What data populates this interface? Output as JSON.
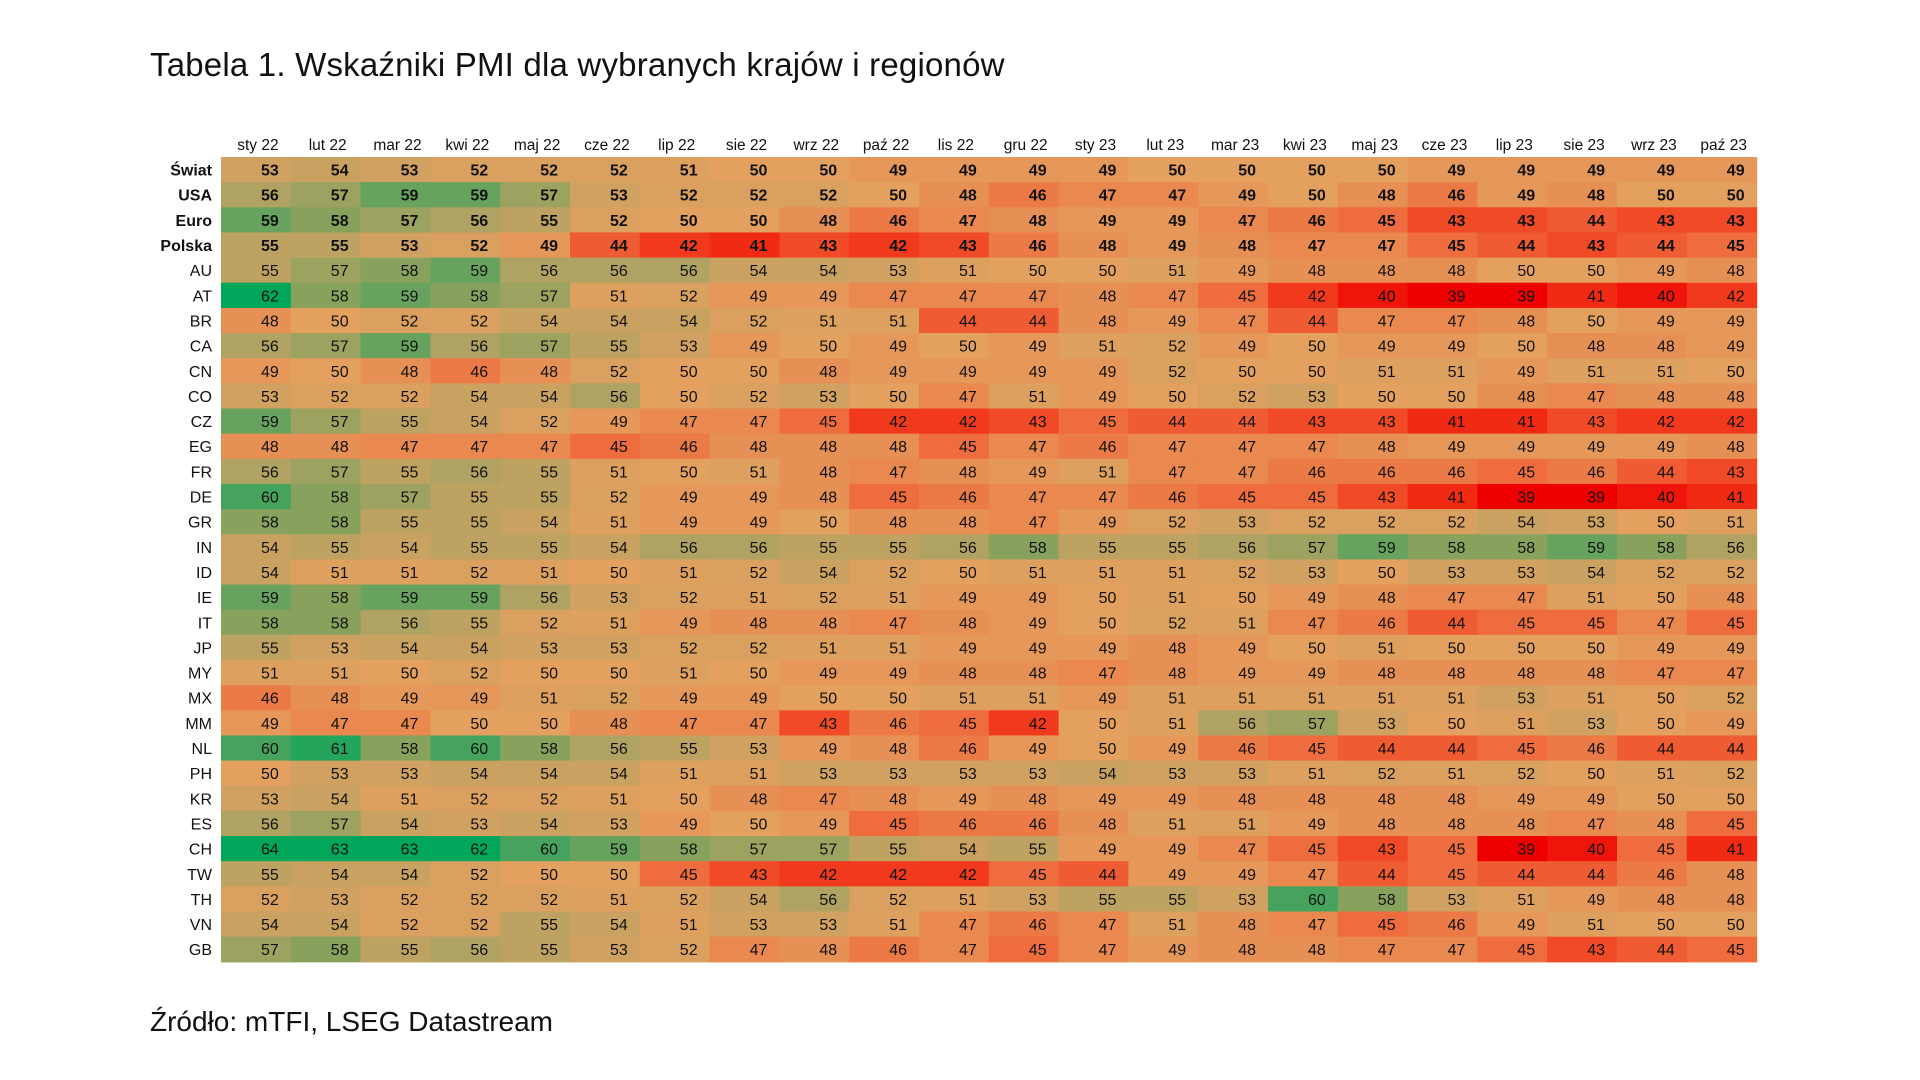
{
  "title": "Tabela 1. Wskaźniki PMI dla wybranych krajów i regionów",
  "source": "Źródło: mTFI, LSEG Datastream",
  "chart_data": {
    "type": "heatmap",
    "title": "Tabela 1. Wskaźniki PMI dla wybranych krajów i regionów",
    "columns": [
      "sty 22",
      "lut 22",
      "mar 22",
      "kwi 22",
      "maj 22",
      "cze 22",
      "lip 22",
      "sie 22",
      "wrz 22",
      "paź 22",
      "lis 22",
      "gru 22",
      "sty 23",
      "lut 23",
      "mar 23",
      "kwi 23",
      "maj 23",
      "cze 23",
      "lip 23",
      "sie 23",
      "wrz 23",
      "paź 23"
    ],
    "color_scale": {
      "low": "#ee0000",
      "mid": "#e3a05e",
      "high": "#00a65a",
      "low_value": 39,
      "mid_value": 50,
      "high_value": 64
    },
    "bold_rows": [
      "Świat",
      "USA",
      "Euro",
      "Polska"
    ],
    "rows": [
      {
        "label": "Świat",
        "values": [
          53,
          54,
          53,
          52,
          52,
          52,
          51,
          50,
          50,
          49,
          49,
          49,
          49,
          50,
          50,
          50,
          50,
          49,
          49,
          49,
          49,
          49
        ]
      },
      {
        "label": "USA",
        "values": [
          56,
          57,
          59,
          59,
          57,
          53,
          52,
          52,
          52,
          50,
          48,
          46,
          47,
          47,
          49,
          50,
          48,
          46,
          49,
          48,
          50,
          50
        ]
      },
      {
        "label": "Euro",
        "values": [
          59,
          58,
          57,
          56,
          55,
          52,
          50,
          50,
          48,
          46,
          47,
          48,
          49,
          49,
          47,
          46,
          45,
          43,
          43,
          44,
          43,
          43
        ]
      },
      {
        "label": "Polska",
        "values": [
          55,
          55,
          53,
          52,
          49,
          44,
          42,
          41,
          43,
          42,
          43,
          46,
          48,
          49,
          48,
          47,
          47,
          45,
          44,
          43,
          44,
          45
        ]
      },
      {
        "label": "AU",
        "values": [
          55,
          57,
          58,
          59,
          56,
          56,
          56,
          54,
          54,
          53,
          51,
          50,
          50,
          51,
          49,
          48,
          48,
          48,
          50,
          50,
          49,
          48
        ]
      },
      {
        "label": "AT",
        "values": [
          62,
          58,
          59,
          58,
          57,
          51,
          52,
          49,
          49,
          47,
          47,
          47,
          48,
          47,
          45,
          42,
          40,
          39,
          39,
          41,
          40,
          42
        ]
      },
      {
        "label": "BR",
        "values": [
          48,
          50,
          52,
          52,
          54,
          54,
          54,
          52,
          51,
          51,
          44,
          44,
          48,
          49,
          47,
          44,
          47,
          47,
          48,
          50,
          49,
          49
        ]
      },
      {
        "label": "CA",
        "values": [
          56,
          57,
          59,
          56,
          57,
          55,
          53,
          49,
          50,
          49,
          50,
          49,
          51,
          52,
          49,
          50,
          49,
          49,
          50,
          48,
          48,
          49
        ]
      },
      {
        "label": "CN",
        "values": [
          49,
          50,
          48,
          46,
          48,
          52,
          50,
          50,
          48,
          49,
          49,
          49,
          49,
          52,
          50,
          50,
          51,
          51,
          49,
          51,
          51,
          50
        ]
      },
      {
        "label": "CO",
        "values": [
          53,
          52,
          52,
          54,
          54,
          56,
          50,
          52,
          53,
          50,
          47,
          51,
          49,
          50,
          52,
          53,
          50,
          50,
          48,
          47,
          48,
          48
        ]
      },
      {
        "label": "CZ",
        "values": [
          59,
          57,
          55,
          54,
          52,
          49,
          47,
          47,
          45,
          42,
          42,
          43,
          45,
          44,
          44,
          43,
          43,
          41,
          41,
          43,
          42,
          42
        ]
      },
      {
        "label": "EG",
        "values": [
          48,
          48,
          47,
          47,
          47,
          45,
          46,
          48,
          48,
          48,
          45,
          47,
          46,
          47,
          47,
          47,
          48,
          49,
          49,
          49,
          49,
          48
        ]
      },
      {
        "label": "FR",
        "values": [
          56,
          57,
          55,
          56,
          55,
          51,
          50,
          51,
          48,
          47,
          48,
          49,
          51,
          47,
          47,
          46,
          46,
          46,
          45,
          46,
          44,
          43
        ]
      },
      {
        "label": "DE",
        "values": [
          60,
          58,
          57,
          55,
          55,
          52,
          49,
          49,
          48,
          45,
          46,
          47,
          47,
          46,
          45,
          45,
          43,
          41,
          39,
          39,
          40,
          41
        ]
      },
      {
        "label": "GR",
        "values": [
          58,
          58,
          55,
          55,
          54,
          51,
          49,
          49,
          50,
          48,
          48,
          47,
          49,
          52,
          53,
          52,
          52,
          52,
          54,
          53,
          50,
          51
        ]
      },
      {
        "label": "IN",
        "values": [
          54,
          55,
          54,
          55,
          55,
          54,
          56,
          56,
          55,
          55,
          56,
          58,
          55,
          55,
          56,
          57,
          59,
          58,
          58,
          59,
          58,
          56
        ]
      },
      {
        "label": "ID",
        "values": [
          54,
          51,
          51,
          52,
          51,
          50,
          51,
          52,
          54,
          52,
          50,
          51,
          51,
          51,
          52,
          53,
          50,
          53,
          53,
          54,
          52,
          52
        ]
      },
      {
        "label": "IE",
        "values": [
          59,
          58,
          59,
          59,
          56,
          53,
          52,
          51,
          52,
          51,
          49,
          49,
          50,
          51,
          50,
          49,
          48,
          47,
          47,
          51,
          50,
          48
        ]
      },
      {
        "label": "IT",
        "values": [
          58,
          58,
          56,
          55,
          52,
          51,
          49,
          48,
          48,
          47,
          48,
          49,
          50,
          52,
          51,
          47,
          46,
          44,
          45,
          45,
          47,
          45
        ]
      },
      {
        "label": "JP",
        "values": [
          55,
          53,
          54,
          54,
          53,
          53,
          52,
          52,
          51,
          51,
          49,
          49,
          49,
          48,
          49,
          50,
          51,
          50,
          50,
          50,
          49,
          49
        ]
      },
      {
        "label": "MY",
        "values": [
          51,
          51,
          50,
          52,
          50,
          50,
          51,
          50,
          49,
          49,
          48,
          48,
          47,
          48,
          49,
          49,
          48,
          48,
          48,
          48,
          47,
          47
        ]
      },
      {
        "label": "MX",
        "values": [
          46,
          48,
          49,
          49,
          51,
          52,
          49,
          49,
          50,
          50,
          51,
          51,
          49,
          51,
          51,
          51,
          51,
          51,
          53,
          51,
          50,
          52
        ]
      },
      {
        "label": "MM",
        "values": [
          49,
          47,
          47,
          50,
          50,
          48,
          47,
          47,
          43,
          46,
          45,
          42,
          50,
          51,
          56,
          57,
          53,
          50,
          51,
          53,
          50,
          49
        ]
      },
      {
        "label": "NL",
        "values": [
          60,
          61,
          58,
          60,
          58,
          56,
          55,
          53,
          49,
          48,
          46,
          49,
          50,
          49,
          46,
          45,
          44,
          44,
          45,
          46,
          44,
          44
        ]
      },
      {
        "label": "PH",
        "values": [
          50,
          53,
          53,
          54,
          54,
          54,
          51,
          51,
          53,
          53,
          53,
          53,
          54,
          53,
          53,
          51,
          52,
          51,
          52,
          50,
          51,
          52
        ]
      },
      {
        "label": "KR",
        "values": [
          53,
          54,
          51,
          52,
          52,
          51,
          50,
          48,
          47,
          48,
          49,
          48,
          49,
          49,
          48,
          48,
          48,
          48,
          49,
          49,
          50,
          50
        ]
      },
      {
        "label": "ES",
        "values": [
          56,
          57,
          54,
          53,
          54,
          53,
          49,
          50,
          49,
          45,
          46,
          46,
          48,
          51,
          51,
          49,
          48,
          48,
          48,
          47,
          48,
          45
        ]
      },
      {
        "label": "CH",
        "values": [
          64,
          63,
          63,
          62,
          60,
          59,
          58,
          57,
          57,
          55,
          54,
          55,
          49,
          49,
          47,
          45,
          43,
          45,
          39,
          40,
          45,
          41
        ]
      },
      {
        "label": "TW",
        "values": [
          55,
          54,
          54,
          52,
          50,
          50,
          45,
          43,
          42,
          42,
          42,
          45,
          44,
          49,
          49,
          47,
          44,
          45,
          44,
          44,
          46,
          48
        ]
      },
      {
        "label": "TH",
        "values": [
          52,
          53,
          52,
          52,
          52,
          51,
          52,
          54,
          56,
          52,
          51,
          53,
          55,
          55,
          53,
          60,
          58,
          53,
          51,
          49,
          48,
          48
        ]
      },
      {
        "label": "VN",
        "values": [
          54,
          54,
          52,
          52,
          55,
          54,
          51,
          53,
          53,
          51,
          47,
          46,
          47,
          51,
          48,
          47,
          45,
          46,
          49,
          51,
          50,
          50
        ]
      },
      {
        "label": "GB",
        "values": [
          57,
          58,
          55,
          56,
          55,
          53,
          52,
          47,
          48,
          46,
          47,
          45,
          47,
          49,
          48,
          48,
          47,
          47,
          45,
          43,
          44,
          45
        ]
      }
    ]
  }
}
